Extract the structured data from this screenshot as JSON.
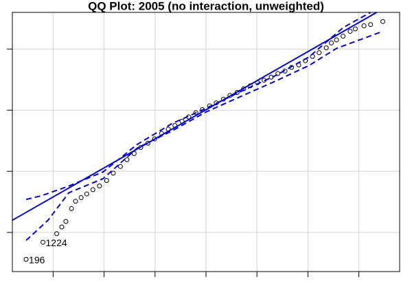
{
  "chart_data": {
    "type": "scatter",
    "title": "QQ Plot: 2005 (no interaction, unweighted)",
    "xlim": [
      -3.8,
      3.8
    ],
    "ylim": [
      -2.64,
      1.6
    ],
    "xticks": [
      -3,
      -2,
      -1,
      0,
      1,
      2,
      3
    ],
    "yticks": [
      -2,
      -1,
      0,
      1
    ],
    "grid": true,
    "series": [
      {
        "style": "points",
        "color": "#000000",
        "x": [
          -3.53,
          -3.2,
          -2.93,
          -2.83,
          -2.75,
          -2.64,
          -2.56,
          -2.45,
          -2.34,
          -2.22,
          -2.09,
          -1.95,
          -1.82,
          -1.68,
          -1.55,
          -1.41,
          -1.28,
          -1.14,
          -1.01,
          -0.87,
          -0.74,
          -0.61,
          -0.47,
          -0.34,
          -0.2,
          -0.07,
          0.07,
          0.2,
          0.34,
          0.47,
          0.61,
          0.74,
          0.87,
          1.01,
          1.14,
          1.28,
          1.41,
          1.55,
          1.68,
          1.82,
          1.95,
          2.09,
          2.22,
          2.36,
          2.46,
          2.56,
          2.69,
          2.83,
          2.93,
          3.1,
          3.23,
          3.47
        ],
        "values": [
          -2.44,
          -2.16,
          -2.02,
          -1.91,
          -1.82,
          -1.61,
          -1.49,
          -1.43,
          -1.37,
          -1.3,
          -1.24,
          -1.15,
          -1.03,
          -0.92,
          -0.81,
          -0.71,
          -0.61,
          -0.54,
          -0.47,
          -0.38,
          -0.31,
          -0.25,
          -0.18,
          -0.11,
          -0.04,
          0.01,
          0.07,
          0.12,
          0.18,
          0.24,
          0.29,
          0.35,
          0.4,
          0.45,
          0.49,
          0.54,
          0.6,
          0.64,
          0.7,
          0.74,
          0.81,
          0.88,
          0.94,
          1.02,
          1.1,
          1.15,
          1.21,
          1.29,
          1.33,
          1.38,
          1.4,
          1.45
        ]
      },
      {
        "style": "solid",
        "color": "#0000cd",
        "x": [
          -3.8,
          3.35
        ],
        "values": [
          -1.8,
          1.6
        ]
      },
      {
        "style": "dashed",
        "color": "#0000cd",
        "x": [
          -3.53,
          -3.23,
          -2.69,
          -2.02,
          -1.35,
          -0.67,
          0,
          0.67,
          1.35,
          2.02,
          2.69,
          3.23
        ],
        "values": [
          -1.46,
          -1.4,
          -1.24,
          -1.01,
          -0.56,
          -0.22,
          0.03,
          0.3,
          0.56,
          0.87,
          1.35,
          1.6
        ]
      },
      {
        "style": "dashed",
        "color": "#0000cd",
        "x": [
          -3.53,
          -3.1,
          -2.69,
          -2.02,
          -1.35,
          -0.67,
          0,
          0.67,
          1.35,
          2.02,
          2.56,
          3.47
        ],
        "values": [
          -2.13,
          -1.8,
          -1.35,
          -1.12,
          -0.62,
          -0.34,
          -0.03,
          0.22,
          0.47,
          0.73,
          1.01,
          1.29
        ]
      }
    ],
    "annotations": [
      {
        "text": "196",
        "x": -3.53,
        "y": -2.44
      },
      {
        "text": "1224",
        "x": -3.2,
        "y": -2.16
      }
    ]
  }
}
